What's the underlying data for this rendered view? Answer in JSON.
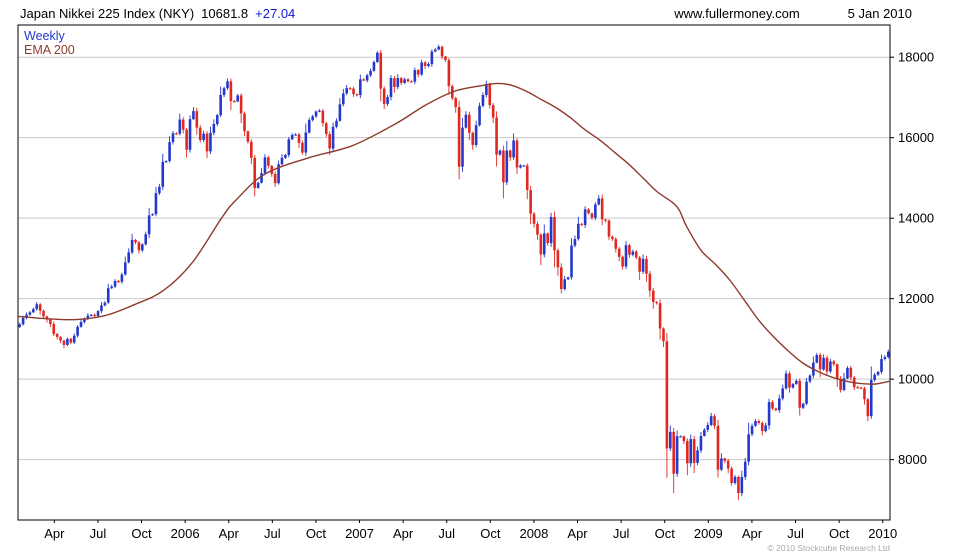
{
  "header": {
    "title": "Japan Nikkei 225 Index (NKY)",
    "last_price": "10681.8",
    "change": "+27.04",
    "website": "www.fullermoney.com",
    "date": "5 Jan 2010"
  },
  "legend": {
    "series": "Weekly",
    "overlay": "EMA 200"
  },
  "footer": {
    "copyright": "© 2010 Stockcube Research Ltd"
  },
  "colors": {
    "up": "#2438cc",
    "down": "#e02820",
    "ema": "#8e3a2c",
    "change": "#1515d8",
    "grid": "#c9c9c9",
    "axis_text": "#000000",
    "border": "#000000",
    "copyright": "#aaaaaa"
  },
  "chart_data": {
    "type": "candlestick",
    "title": "Japan Nikkei 225 Index (NKY)",
    "timeframe": "Weekly",
    "overlay": "EMA 200",
    "x_start": "Feb 2005",
    "x_end": "Jan 2010",
    "last_close": 10681.8,
    "change": 27.04,
    "grid": true,
    "ylim": [
      6500,
      18800
    ],
    "y_ticks": [
      8000,
      10000,
      12000,
      14000,
      16000,
      18000
    ],
    "months_total": 60,
    "x_ticks": [
      {
        "label": "Apr",
        "m": 2
      },
      {
        "label": "Jul",
        "m": 5
      },
      {
        "label": "Oct",
        "m": 8
      },
      {
        "label": "2006",
        "m": 11
      },
      {
        "label": "Apr",
        "m": 14
      },
      {
        "label": "Jul",
        "m": 17
      },
      {
        "label": "Oct",
        "m": 20
      },
      {
        "label": "2007",
        "m": 23
      },
      {
        "label": "Apr",
        "m": 26
      },
      {
        "label": "Jul",
        "m": 29
      },
      {
        "label": "Oct",
        "m": 32
      },
      {
        "label": "2008",
        "m": 35
      },
      {
        "label": "Apr",
        "m": 38
      },
      {
        "label": "Jul",
        "m": 41
      },
      {
        "label": "Oct",
        "m": 44
      },
      {
        "label": "2009",
        "m": 47
      },
      {
        "label": "Apr",
        "m": 50
      },
      {
        "label": "Jul",
        "m": 53
      },
      {
        "label": "Oct",
        "m": 56
      },
      {
        "label": "2010",
        "m": 59
      }
    ],
    "first_open": 11300,
    "weekly_closes": [
      11360,
      11520,
      11600,
      11660,
      11740,
      11860,
      11700,
      11560,
      11480,
      11370,
      11120,
      11050,
      10960,
      10850,
      11000,
      10910,
      11080,
      11300,
      11420,
      11500,
      11580,
      11600,
      11570,
      11690,
      11830,
      11900,
      12260,
      12300,
      12440,
      12420,
      12600,
      12900,
      13150,
      13460,
      13400,
      13200,
      13350,
      13600,
      14070,
      14100,
      14620,
      14780,
      15400,
      15420,
      15890,
      16110,
      16100,
      16450,
      16200,
      15700,
      16460,
      16660,
      16250,
      15940,
      16100,
      15660,
      16120,
      16340,
      16560,
      17060,
      17230,
      17400,
      16910,
      16900,
      17050,
      16600,
      16160,
      15900,
      15500,
      14750,
      14880,
      15120,
      15510,
      15300,
      15100,
      14870,
      15340,
      15500,
      15570,
      15960,
      16070,
      16080,
      15870,
      15630,
      16130,
      16440,
      16530,
      16650,
      16670,
      16360,
      16090,
      15730,
      16270,
      16420,
      16830,
      17100,
      17230,
      17220,
      17080,
      17060,
      17450,
      17420,
      17550,
      17660,
      17880,
      18110,
      17220,
      16840,
      17010,
      17480,
      17260,
      17480,
      17360,
      17450,
      17400,
      17390,
      17680,
      17570,
      17870,
      17780,
      17830,
      18140,
      18190,
      18260,
      18020,
      17930,
      17280,
      16980,
      16760,
      15280,
      16250,
      16570,
      16120,
      15820,
      16310,
      16790,
      17060,
      17330,
      16810,
      16500,
      15580,
      15680,
      14890,
      15680,
      15510,
      15930,
      15260,
      15310,
      15310,
      14700,
      14110,
      13860,
      13590,
      13100,
      13620,
      13380,
      14030,
      13200,
      12780,
      12240,
      12480,
      12530,
      13320,
      13480,
      13860,
      13830,
      14220,
      14120,
      14010,
      14340,
      14490,
      13970,
      13940,
      13540,
      13480,
      13240,
      13040,
      12800,
      13330,
      13090,
      13170,
      13020,
      12670,
      12990,
      12620,
      12200,
      11920,
      11890,
      11260,
      10940,
      8280,
      8690,
      7650,
      8580,
      8580,
      8460,
      7910,
      8510,
      7920,
      8230,
      8590,
      8740,
      8860,
      9080,
      8840,
      7750,
      8030,
      7970,
      7780,
      7420,
      7570,
      7170,
      7570,
      7950,
      8630,
      8840,
      8960,
      8910,
      8710,
      8850,
      9430,
      9270,
      9230,
      9520,
      9770,
      10140,
      9790,
      9880,
      9960,
      9290,
      9390,
      9940,
      10090,
      10410,
      10600,
      10240,
      10530,
      10190,
      10440,
      10370,
      10010,
      9730,
      10020,
      10280,
      10040,
      9800,
      9790,
      9770,
      9500,
      9080,
      9980,
      10110,
      10180,
      10500,
      10550,
      10681.8
    ],
    "ema_anchors": [
      [
        0,
        11560
      ],
      [
        2,
        11500
      ],
      [
        4,
        11480
      ],
      [
        6,
        11580
      ],
      [
        8,
        11850
      ],
      [
        10,
        12200
      ],
      [
        12,
        12900
      ],
      [
        14,
        14000
      ],
      [
        15,
        14450
      ],
      [
        17,
        15100
      ],
      [
        20,
        15500
      ],
      [
        23,
        15800
      ],
      [
        26,
        16350
      ],
      [
        28,
        16800
      ],
      [
        30,
        17150
      ],
      [
        32,
        17300
      ],
      [
        33,
        17350
      ],
      [
        34,
        17300
      ],
      [
        35,
        17150
      ],
      [
        36,
        16950
      ],
      [
        37,
        16750
      ],
      [
        38,
        16500
      ],
      [
        39,
        16200
      ],
      [
        40,
        15950
      ],
      [
        41,
        15650
      ],
      [
        42,
        15350
      ],
      [
        43,
        15000
      ],
      [
        44,
        14650
      ],
      [
        45,
        14400
      ],
      [
        45.5,
        14200
      ],
      [
        46,
        13800
      ],
      [
        47,
        13200
      ],
      [
        48,
        12850
      ],
      [
        49,
        12450
      ],
      [
        50,
        11950
      ],
      [
        51,
        11450
      ],
      [
        52,
        11050
      ],
      [
        53,
        10700
      ],
      [
        54,
        10400
      ],
      [
        55,
        10200
      ],
      [
        56,
        10050
      ],
      [
        57,
        9950
      ],
      [
        58,
        9890
      ],
      [
        59,
        9880
      ],
      [
        60,
        9950
      ]
    ]
  }
}
